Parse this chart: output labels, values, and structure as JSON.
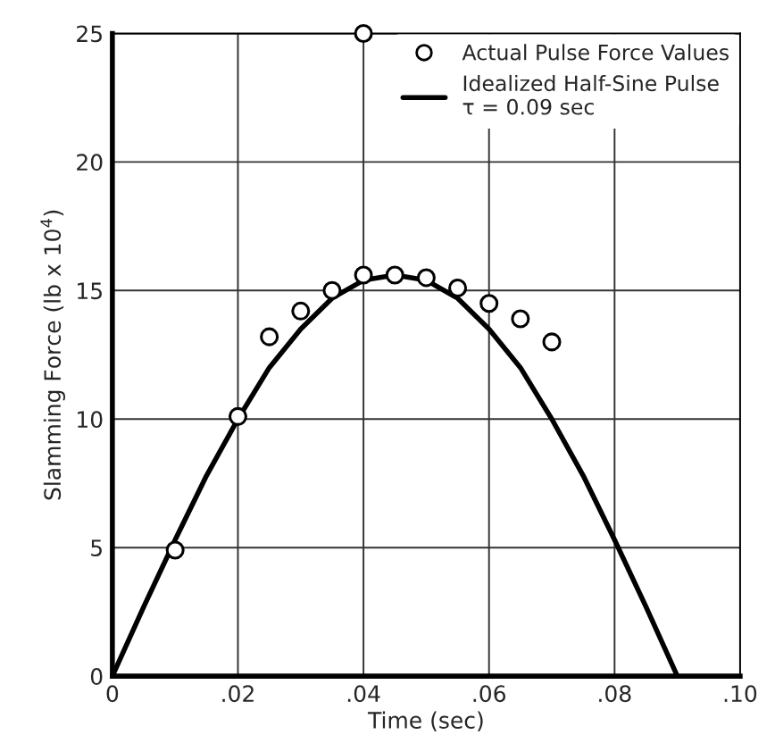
{
  "chart_data": {
    "type": "scatter",
    "xlabel": "Time (sec)",
    "ylabel": "Slamming Force (lb x 10$^{4}$)",
    "xlim": [
      0,
      0.1
    ],
    "ylim": [
      0,
      25
    ],
    "xticks": [
      0,
      {
        "value": 0.02,
        "label": ".02"
      },
      {
        "value": 0.04,
        "label": ".04"
      },
      {
        "value": 0.06,
        "label": ".06"
      },
      {
        "value": 0.08,
        "label": ".08"
      },
      {
        "value": 0.1,
        "label": ".10"
      }
    ],
    "yticks": [
      0,
      5,
      10,
      15,
      20,
      25
    ],
    "grid": true,
    "legend": "top right",
    "series": [
      {
        "name": "Actual Pulse Force Values",
        "marker": "circle",
        "color": "#000000",
        "x": [
          0.01,
          0.02,
          0.025,
          0.03,
          0.035,
          0.04,
          0.045,
          0.05,
          0.055,
          0.06,
          0.065,
          0.07,
          0.04
        ],
        "values": [
          4.9,
          10.1,
          13.2,
          14.2,
          15.0,
          15.6,
          15.6,
          15.5,
          15.1,
          14.5,
          13.9,
          13.0,
          25
        ]
      },
      {
        "name": "Idealized Half-Sine Pulse\nτ = 0.09 sec",
        "type": "line",
        "line_style": "solid",
        "color": "#000000",
        "x": [
          0,
          0.005,
          0.01,
          0.015,
          0.02,
          0.025,
          0.03,
          0.035,
          0.04,
          0.045,
          0.05,
          0.055,
          0.06,
          0.065,
          0.07,
          0.075,
          0.08,
          0.085,
          0.09
        ],
        "values": [
          0,
          2.7,
          5.3,
          7.8,
          10.0,
          12.0,
          13.5,
          14.7,
          15.4,
          15.6,
          15.4,
          14.7,
          13.5,
          12.0,
          10.0,
          7.8,
          5.3,
          2.7,
          0
        ]
      }
    ]
  }
}
